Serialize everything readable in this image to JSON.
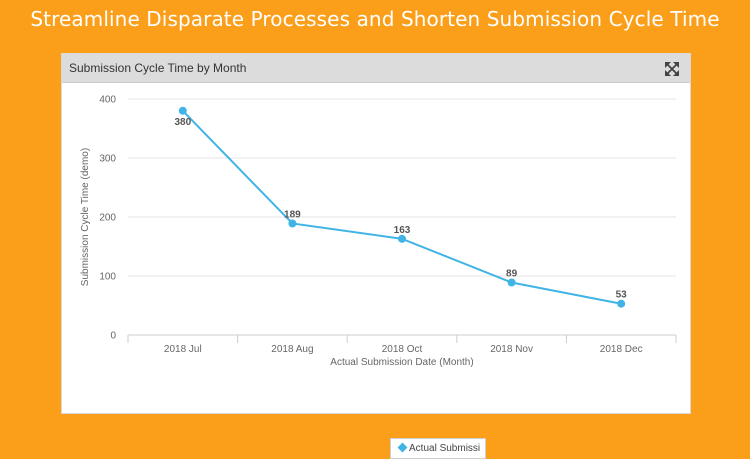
{
  "headline": "Streamline Disparate Processes and Shorten Submission Cycle Time",
  "panel": {
    "title": "Submission Cycle Time by Month",
    "expand_icon": "expand-arrows-icon"
  },
  "colors": {
    "background": "#fb9f1b",
    "series": "#41b4e6"
  },
  "chart_data": {
    "type": "line",
    "categories": [
      "2018 Jul",
      "2018 Aug",
      "2018 Oct",
      "2018 Nov",
      "2018 Dec"
    ],
    "series": [
      {
        "name": "Actual Submissi",
        "values": [
          380,
          189,
          163,
          89,
          53
        ]
      }
    ],
    "xlabel": "Actual Submission Date (Month)",
    "ylabel": "Submission Cycle Time (demo)",
    "ylim": [
      0,
      400
    ],
    "yticks": [
      0,
      100,
      200,
      300,
      400
    ],
    "grid": true,
    "data_labels": true,
    "legend_position": "bottom"
  }
}
